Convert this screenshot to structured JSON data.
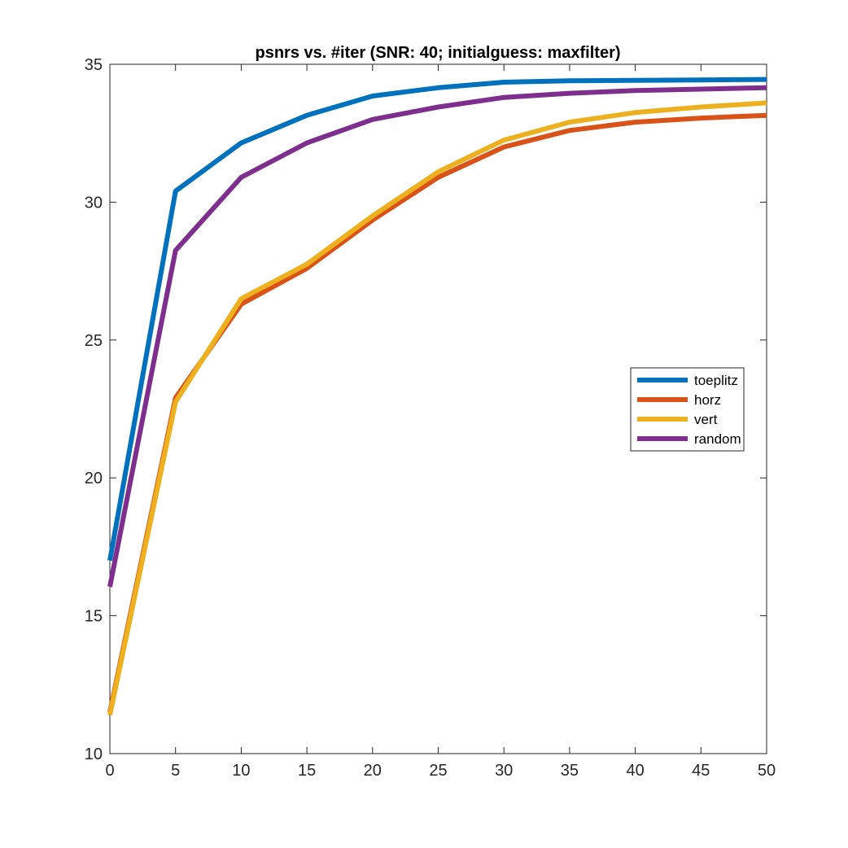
{
  "chart_data": {
    "type": "line",
    "title": "psnrs vs. #iter (SNR: 40; initialguess: maxfilter)",
    "xlabel": "",
    "ylabel": "",
    "xlim": [
      0,
      50
    ],
    "ylim": [
      10,
      35
    ],
    "x_ticks": [
      "0",
      "5",
      "10",
      "15",
      "20",
      "25",
      "30",
      "35",
      "40",
      "45",
      "50"
    ],
    "y_ticks": [
      "10",
      "15",
      "20",
      "25",
      "30",
      "35"
    ],
    "grid": false,
    "legend_position": "right",
    "x": [
      0,
      5,
      10,
      15,
      20,
      25,
      30,
      35,
      40,
      45,
      50
    ],
    "series": [
      {
        "name": "toeplitz",
        "color": "#0072BD",
        "values": [
          17.0,
          30.4,
          32.15,
          33.15,
          33.85,
          34.15,
          34.35,
          34.4,
          34.42,
          34.43,
          34.45
        ]
      },
      {
        "name": "horz",
        "color": "#D95319",
        "values": [
          11.5,
          22.9,
          26.3,
          27.6,
          29.35,
          30.9,
          32.0,
          32.6,
          32.9,
          33.05,
          33.15
        ]
      },
      {
        "name": "vert",
        "color": "#EDB120",
        "values": [
          11.4,
          22.75,
          26.5,
          27.75,
          29.5,
          31.1,
          32.25,
          32.9,
          33.25,
          33.45,
          33.6
        ]
      },
      {
        "name": "random",
        "color": "#7E2F8E",
        "values": [
          16.05,
          28.25,
          30.9,
          32.15,
          33.0,
          33.45,
          33.8,
          33.95,
          34.05,
          34.1,
          34.15
        ]
      }
    ]
  }
}
